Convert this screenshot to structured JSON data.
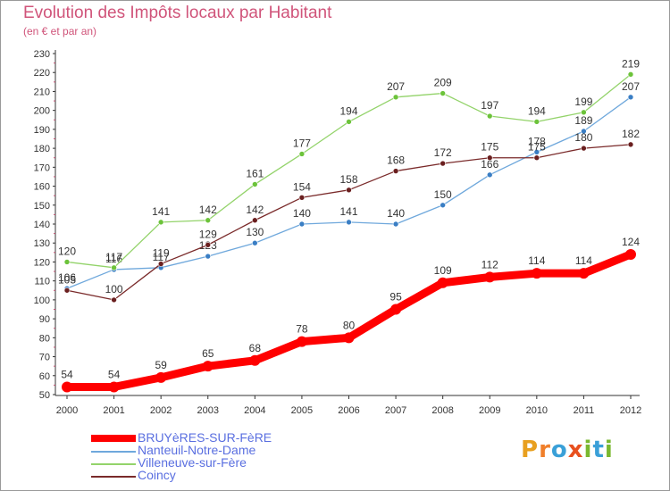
{
  "header": {
    "title": "Evolution des Impôts locaux par Habitant",
    "subtitle": "(en € et par an)"
  },
  "logo": {
    "text": "Proxiti",
    "letters": [
      "P",
      "r",
      "o",
      "x",
      "i",
      "t",
      "i"
    ],
    "colors": [
      "#e8a020",
      "#f07f2a",
      "#3aa0d8",
      "#e8501e",
      "#7ab830",
      "#3aa0d8",
      "#7ab830"
    ]
  },
  "chart_data": {
    "type": "line",
    "title": "Evolution des Impôts locaux par Habitant",
    "subtitle": "(en € et par an)",
    "xlabel": "",
    "ylabel": "",
    "categories": [
      "2000",
      "2001",
      "2002",
      "2003",
      "2004",
      "2005",
      "2006",
      "2007",
      "2008",
      "2009",
      "2010",
      "2011",
      "2012"
    ],
    "ylim": [
      50,
      230
    ],
    "yticks": [
      "50",
      "60",
      "70",
      "80",
      "90",
      "100",
      "110",
      "120",
      "130",
      "140",
      "150",
      "160",
      "170",
      "180",
      "190",
      "200",
      "210",
      "220",
      "230"
    ],
    "grid": false,
    "legend_position": "bottom-left",
    "series": [
      {
        "name": "BRUYèRES-SUR-FèRE",
        "color": "#ff0000",
        "values": [
          54,
          54,
          59,
          65,
          68,
          78,
          80,
          95,
          109,
          112,
          114,
          114,
          124
        ],
        "labels": [
          "54",
          "54",
          "59",
          "65",
          "68",
          "78",
          "80",
          "95",
          "109",
          "112",
          "114",
          "114",
          "124"
        ]
      },
      {
        "name": "Nanteuil-Notre-Dame",
        "color": "#6fa8dc",
        "marker": "#3a7ec4",
        "values": [
          106,
          116,
          117,
          123,
          130,
          140,
          141,
          140,
          150,
          166,
          178,
          189,
          207
        ],
        "labels": [
          "106",
          "116",
          "117",
          "123",
          "130",
          "140",
          "141",
          "140",
          "150",
          "166",
          "178",
          "189",
          "207"
        ]
      },
      {
        "name": "Villeneuve-sur-Fère",
        "color": "#93d36a",
        "marker": "#6cc33a",
        "values": [
          120,
          117,
          141,
          142,
          161,
          177,
          194,
          207,
          209,
          197,
          194,
          199,
          219
        ],
        "labels": [
          "120",
          "117",
          "141",
          "142",
          "161",
          "177",
          "194",
          "207",
          "209",
          "197",
          "194",
          "199",
          "219"
        ]
      },
      {
        "name": "Coincy",
        "color": "#7a2a2a",
        "marker": "#6a1f1f",
        "values": [
          105,
          100,
          119,
          129,
          142,
          154,
          158,
          168,
          172,
          175,
          175,
          180,
          182
        ],
        "labels": [
          "105",
          "100",
          "119",
          "129",
          "142",
          "154",
          "158",
          "168",
          "172",
          "175",
          "175",
          "180",
          "182"
        ]
      }
    ]
  }
}
